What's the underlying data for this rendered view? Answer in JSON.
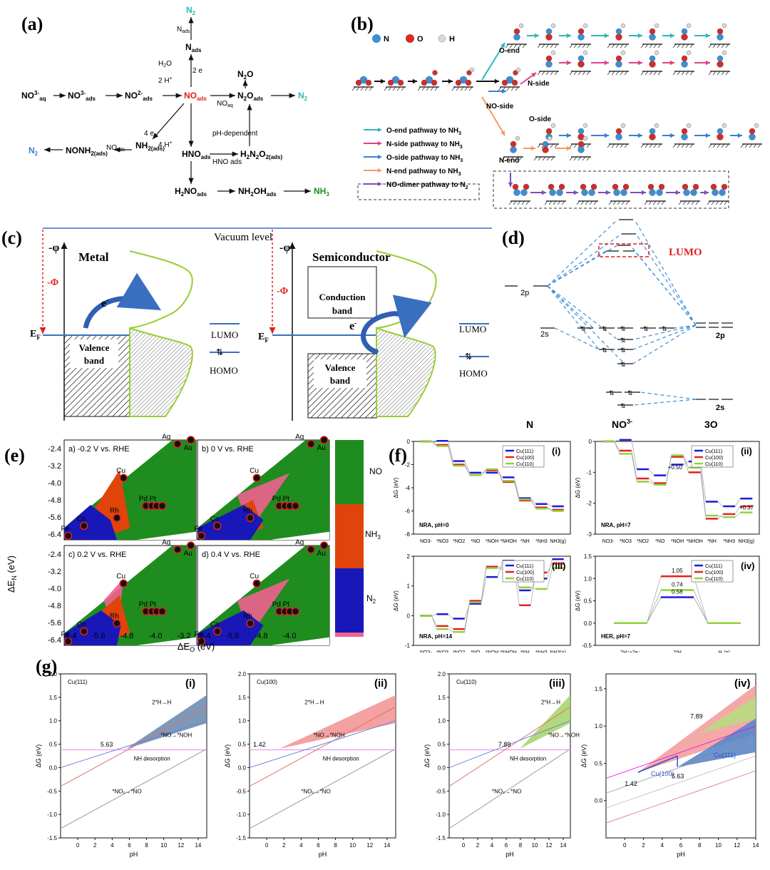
{
  "labels": {
    "a": "(a)",
    "b": "(b)",
    "c": "(c)",
    "d": "(d)",
    "e": "(e)",
    "f": "(f)",
    "g": "(g)"
  },
  "colors": {
    "teal": "#2fb7b7",
    "pink": "#e0408a",
    "blue": "#3a7fd0",
    "orange": "#f59a5a",
    "purple": "#7b4fb0",
    "nodeN": "#3a8fd8",
    "nodeO": "#d62a2a",
    "nodeH": "#d9d9d9",
    "orbital": "#3a8fd8",
    "red": "#e02020",
    "green": "#1a8f1a",
    "mapGreen": "#1f8c1f",
    "mapOrange": "#e0440a",
    "mapBlue": "#1818b8",
    "mapPink": "#f06090"
  },
  "a": {
    "species": [
      "N2",
      "Nads",
      "NO3-aq",
      "NO3-ads",
      "NO2-ads",
      "NOads",
      "N2Oads",
      "N2O",
      "NH2(ads)",
      "NONOH2(ads)",
      "HNOads",
      "H2N2O2(ads)",
      "H2NOads",
      "NH2OHads",
      "NH3",
      "N2"
    ],
    "texts": {
      "n2_top": "N",
      "nads_arrow": "N",
      "h2o_top": "H",
      "twoe1": "2 e",
      "twoh1": "2 H",
      "n2o": "N",
      "no3aq": "NO",
      "no3ads": "NO",
      "no2ads": "NO",
      "noads": "NO",
      "n2oads": "N",
      "n2_right": "N",
      "nh2ads": "NH",
      "nonh2": "NONH",
      "n2_left": "N",
      "hnoads": "HNO",
      "h2n2o2": "H",
      "h2noads": "H",
      "nh2oh": "NH",
      "nh3": "NH",
      "ph_dep": "pH-dependent",
      "noaq": "NO",
      "noads_lbl": "NO",
      "hno_ads": "HNO ads",
      "fourE": "4 e",
      "fourH": "4 H"
    }
  },
  "b": {
    "legend_atoms": [
      "N",
      "O",
      "H"
    ],
    "labels": {
      "oend": "O-end",
      "nside": "N-side",
      "noside": "NO-side",
      "oside": "O-side",
      "nend": "N-end"
    },
    "pathways": [
      {
        "label": "O-end pathway to NH",
        "sub": "3",
        "color": "#2fb7b7"
      },
      {
        "label": "N-side pathway to NH",
        "sub": "3",
        "color": "#e0408a"
      },
      {
        "label": "O-side pathway to NH",
        "sub": "3",
        "color": "#3a7fd0"
      },
      {
        "label": "N-end pathway to NH",
        "sub": "3",
        "color": "#f59a5a"
      },
      {
        "label": "NO-dimer pathway to N",
        "sub": "2",
        "color": "#7b4fb0"
      }
    ]
  },
  "c": {
    "vacuum": "Vacuum level",
    "phi": "-φ",
    "Phi": "-Φ",
    "metal": "Metal",
    "semi": "Semiconductor",
    "ef": "E",
    "efsub": "F",
    "eminus": "e",
    "valence1": "Valence",
    "valence2": "band",
    "conduction1": "Conduction",
    "conduction2": "band",
    "lumo": "LUMO",
    "homo": "HOMO"
  },
  "d": {
    "lumo": "LUMO",
    "n_2p": "2p",
    "n_2s": "2s",
    "o_2p": "2p",
    "o_2s": "2s",
    "x_n": "N",
    "x_no3": "NO",
    "x_o": "3O"
  },
  "e": {
    "subtitles": [
      "a)  -0.2 V vs. RHE",
      "b)  0 V vs. RHE",
      "c)  0.2 V vs. RHE",
      "d)  0.4 V vs. RHE"
    ],
    "yticks": [
      "-2.4",
      "-3.2",
      "-4.0",
      "-4.8",
      "-5.6",
      "-6.4"
    ],
    "xticks": [
      "-6.4",
      "-5.6",
      "-4.8",
      "-4.0",
      "-3.2"
    ],
    "ylabel": "ΔE",
    "ylabel_sub": "N",
    "ylabel_unit": " (eV)",
    "xlabel": "ΔE",
    "xlabel_sub": "O",
    "xlabel_unit": " (eV)",
    "metals": [
      "Ag",
      "Au",
      "Cu",
      "Pd",
      "Pt",
      "Rh",
      "Co",
      "Fe"
    ],
    "legend": [
      "NO",
      "NH",
      "N",
      "N"
    ]
  },
  "f": {
    "chart_data": [
      {
        "type": "line",
        "title": "NRA, pH=0",
        "label": "(i)",
        "categories": [
          "NO3-",
          "*NO3",
          "*NO2",
          "*NO",
          "*NOH",
          "*NHOH",
          "*NH",
          "*NH3",
          "NH3(g)"
        ],
        "series": [
          {
            "name": "Cu(111)",
            "values": [
              0,
              0.05,
              -1.7,
              -2.7,
              -2.7,
              -3.1,
              -4.9,
              -5.4,
              -5.6
            ]
          },
          {
            "name": "Cu(100)",
            "values": [
              0,
              -0.3,
              -2.0,
              -2.9,
              -2.5,
              -3.5,
              -5.1,
              -5.7,
              -5.9
            ]
          },
          {
            "name": "Cu(110)",
            "values": [
              0,
              -0.4,
              -2.1,
              -2.9,
              -2.4,
              -3.4,
              -5.0,
              -5.8,
              -6.0
            ]
          }
        ],
        "ylim": [
          -8,
          0
        ],
        "yticks": [
          "0",
          "-2",
          "-4",
          "-6",
          "-8"
        ],
        "ylabel": "ΔG (eV)"
      },
      {
        "type": "line",
        "title": "NRA, pH=7",
        "label": "(ii)",
        "categories": [
          "NO3-",
          "*NO3",
          "*NO2",
          "*NO",
          "*NOH",
          "*NHOH",
          "*NH",
          "*NH3",
          "NH3(g)"
        ],
        "series": [
          {
            "name": "Cu(111)",
            "values": [
              0,
              0.05,
              -0.9,
              -1.1,
              -0.75,
              -0.65,
              -1.95,
              -2.1,
              -1.85
            ]
          },
          {
            "name": "Cu(100)",
            "values": [
              0,
              -0.3,
              -1.2,
              -1.35,
              -0.5,
              -1.0,
              -2.5,
              -2.35,
              -2.1
            ]
          },
          {
            "name": "Cu(110)",
            "values": [
              0,
              -0.4,
              -1.3,
              -1.4,
              -0.45,
              -0.85,
              -2.4,
              -2.45,
              -2.3
            ]
          }
        ],
        "ylim": [
          -3,
          0
        ],
        "yticks": [
          "0",
          "-1",
          "-2",
          "-3"
        ],
        "ylabel": "ΔG (eV)",
        "annotations": [
          "+0.50",
          "+0.37"
        ]
      },
      {
        "type": "line",
        "title": "NRA, pH=14",
        "label": "(iii)",
        "categories": [
          "NO3-",
          "*NO3",
          "*NO2",
          "*NO",
          "*NOH",
          "*NHOH",
          "*NH",
          "*NH3",
          "NH3(g)"
        ],
        "series": [
          {
            "name": "Cu(111)",
            "values": [
              0,
              0.05,
              -0.1,
              0.4,
              1.3,
              1.85,
              0.85,
              1.25,
              1.9
            ]
          },
          {
            "name": "Cu(100)",
            "values": [
              0,
              -0.35,
              -0.45,
              0.5,
              1.65,
              1.6,
              0.35,
              1.45,
              1.75
            ]
          },
          {
            "name": "Cu(110)",
            "values": [
              0,
              -0.45,
              -0.55,
              0.45,
              1.6,
              1.55,
              0.95,
              0.9,
              1.6
            ]
          }
        ],
        "ylim": [
          -1,
          2
        ],
        "yticks": [
          "2",
          "1",
          "0",
          "-1"
        ],
        "ylabel": "ΔG (eV)"
      },
      {
        "type": "line",
        "title": "HER, pH=7",
        "label": "(iv)",
        "categories": [
          "2H⁺+2e⁻",
          "2*H",
          "H₂(g)"
        ],
        "series": [
          {
            "name": "Cu(111)",
            "values": [
              0,
              0.58,
              0
            ]
          },
          {
            "name": "Cu(100)",
            "values": [
              0,
              1.05,
              0
            ]
          },
          {
            "name": "Cu(110)",
            "values": [
              0,
              0.74,
              0
            ]
          }
        ],
        "ylim": [
          -0.5,
          1.5
        ],
        "yticks": [
          "1.5",
          "1.0",
          "0.5",
          "0.0",
          "-0.5"
        ],
        "ylabel": "ΔG (eV)",
        "annotations": [
          "1.05",
          "0.74",
          "0.58"
        ]
      }
    ],
    "series_colors": [
      "#1a1ad8",
      "#e82020",
      "#8fd33a"
    ]
  },
  "g": {
    "chart_data": [
      {
        "type": "line",
        "label": "(i)",
        "title": "Cu(111)",
        "xlim": [
          -2,
          15
        ],
        "ylim": [
          -1.5,
          2.0
        ],
        "xlabel": "pH",
        "ylabel": "ΔG (eV)",
        "xticks": [
          "0",
          "2",
          "4",
          "6",
          "8",
          "10",
          "12",
          "14"
        ],
        "yticks": [
          "2.0",
          "1.5",
          "1.0",
          "0.5",
          "0.0",
          "-0.5",
          "-1.0",
          "-1.5"
        ],
        "annotations": [
          "2*H→H",
          "*NO→*NOH",
          "NH",
          "*NO",
          "5.63"
        ]
      },
      {
        "type": "line",
        "label": "(ii)",
        "title": "Cu(100)",
        "xlim": [
          -2,
          15
        ],
        "ylim": [
          -1.5,
          2.0
        ],
        "xlabel": "pH",
        "ylabel": "ΔG (eV)",
        "xticks": [
          "0",
          "2",
          "4",
          "6",
          "8",
          "10",
          "12",
          "14"
        ],
        "yticks": [
          "2.0",
          "1.5",
          "1.0",
          "0.5",
          "0.0",
          "-0.5",
          "-1.0",
          "-1.5"
        ],
        "annotations": [
          "2*H→H",
          "*NO→*NOH",
          "NH",
          "*NO",
          "1.42"
        ]
      },
      {
        "type": "line",
        "label": "(iii)",
        "title": "Cu(110)",
        "xlim": [
          -2,
          15
        ],
        "ylim": [
          -1.5,
          2.0
        ],
        "xlabel": "pH",
        "ylabel": "ΔG (eV)",
        "xticks": [
          "0",
          "2",
          "4",
          "6",
          "8",
          "10",
          "12",
          "14"
        ],
        "yticks": [
          "2.0",
          "1.5",
          "1.0",
          "0.5",
          "0.0",
          "-0.5",
          "-1.0",
          "-1.5"
        ],
        "annotations": [
          "2*H→H",
          "*NO→*NOH",
          "NH",
          "*NO",
          "7.89"
        ]
      },
      {
        "type": "line",
        "label": "(iv)",
        "xlim": [
          -2,
          14
        ],
        "ylim": [
          -0.5,
          1.7
        ],
        "xlabel": "pH",
        "ylabel": "ΔG (eV)",
        "xticks": [
          "0",
          "2",
          "4",
          "6",
          "8",
          "10",
          "12",
          "14"
        ],
        "yticks": [
          "1.5",
          "1.0",
          "0.5",
          "0.0"
        ],
        "annotations": [
          "7.89",
          "1.42",
          "5.63",
          "Cu(100)",
          "Cu(111)"
        ]
      }
    ]
  }
}
